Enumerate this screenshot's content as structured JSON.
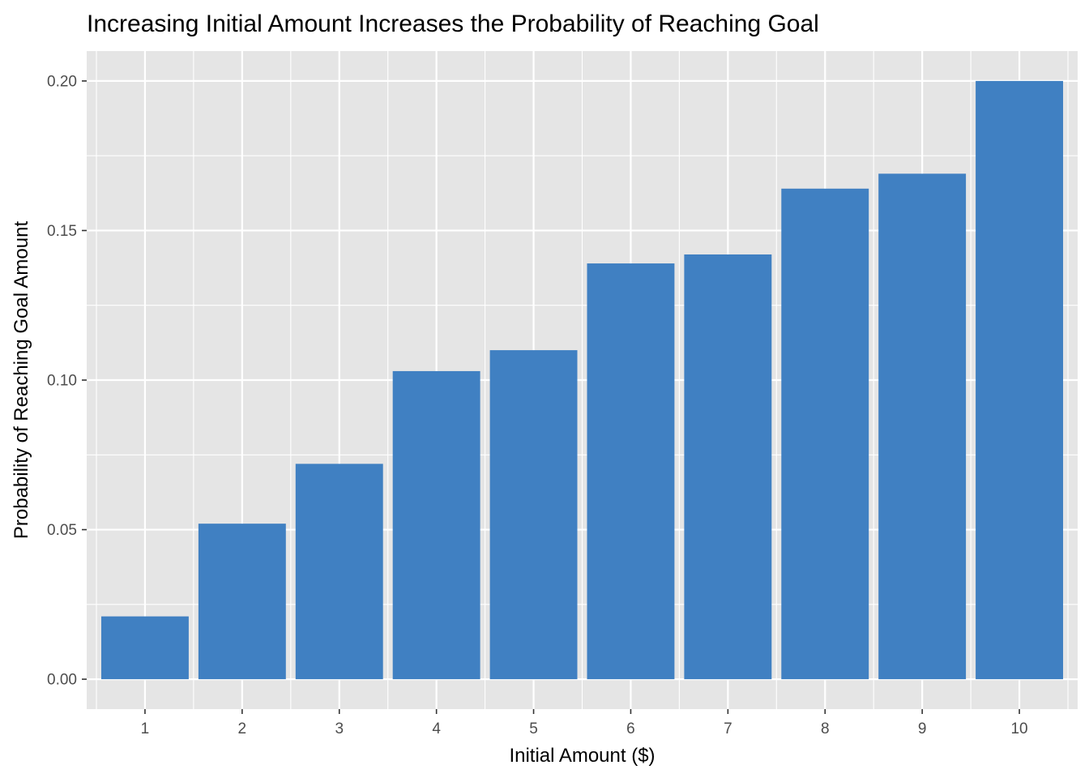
{
  "chart_data": {
    "type": "bar",
    "title": "Increasing Initial Amount Increases the Probability of Reaching Goal",
    "xlabel": "Initial Amount ($)",
    "ylabel": "Probability of Reaching Goal Amount",
    "categories": [
      "1",
      "2",
      "3",
      "4",
      "5",
      "6",
      "7",
      "8",
      "9",
      "10"
    ],
    "values": [
      0.021,
      0.052,
      0.072,
      0.103,
      0.11,
      0.139,
      0.142,
      0.164,
      0.169,
      0.2
    ],
    "ylim": [
      -0.01,
      0.21
    ],
    "yticks": [
      0.0,
      0.05,
      0.1,
      0.15,
      0.2
    ],
    "ytick_labels": [
      "0.00",
      "0.05",
      "0.10",
      "0.15",
      "0.20"
    ],
    "grid": true,
    "legend": "none",
    "colors": {
      "bar": "#4080C2",
      "panel_background": "#E5E5E5",
      "grid": "#FFFFFF"
    }
  }
}
